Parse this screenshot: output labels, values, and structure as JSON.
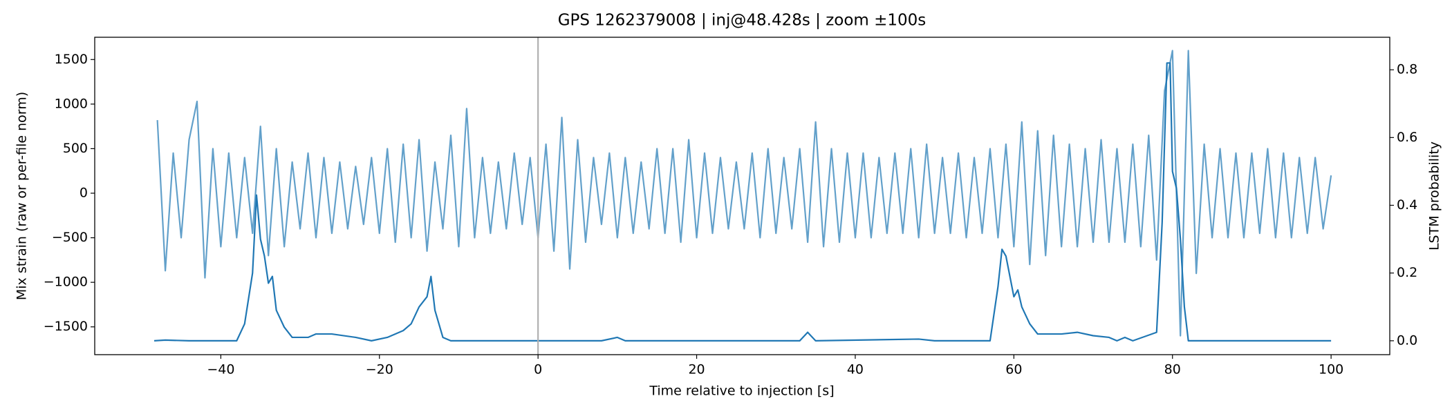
{
  "chart_data": {
    "type": "line",
    "title": "GPS 1262379008 | inj@48.428s | zoom ±100s",
    "x_label": "Time relative to injection [s]",
    "y_label": "Mix strain (raw or per-file norm)",
    "y2_label": "LSTM probability",
    "xlim": [
      -55.9,
      107.4
    ],
    "ylim": [
      -1812,
      1750
    ],
    "y2lim": [
      -0.041,
      0.896
    ],
    "xticks": [
      {
        "value": -40,
        "label": "−40"
      },
      {
        "value": -20,
        "label": "−20"
      },
      0,
      20,
      40,
      60,
      80,
      100
    ],
    "yticks": [
      {
        "value": -1500,
        "label": "−1500"
      },
      {
        "value": -1000,
        "label": "−1000"
      },
      {
        "value": -500,
        "label": "−500"
      },
      0,
      500,
      1000,
      1500
    ],
    "y2ticks": [
      {
        "value": 0,
        "label": "0.0"
      },
      0.2,
      0.4,
      0.6,
      0.8
    ],
    "vline": 0,
    "vline_color": "#b0b0b0",
    "series": [
      {
        "color": "#1f77b4",
        "opacity": 0.7,
        "axis": "y",
        "x": [
          -48,
          -47,
          -46,
          -45,
          -44,
          -43,
          -42,
          -41,
          -40,
          -39,
          -38,
          -37,
          -36,
          -35,
          -34,
          -33,
          -32,
          -31,
          -30,
          -29,
          -28,
          -27,
          -26,
          -25,
          -24,
          -23,
          -22,
          -21,
          -20,
          -19,
          -18,
          -17,
          -16,
          -15,
          -14,
          -13,
          -12,
          -11,
          -10,
          -9,
          -8,
          -7,
          -6,
          -5,
          -4,
          -3,
          -2,
          -1,
          0,
          1,
          2,
          3,
          4,
          5,
          6,
          7,
          8,
          9,
          10,
          11,
          12,
          13,
          14,
          15,
          16,
          17,
          18,
          19,
          20,
          21,
          22,
          23,
          24,
          25,
          26,
          27,
          28,
          29,
          30,
          31,
          32,
          33,
          34,
          35,
          36,
          37,
          38,
          39,
          40,
          41,
          42,
          43,
          44,
          45,
          46,
          47,
          48,
          49,
          50,
          51,
          52,
          53,
          54,
          55,
          56,
          57,
          58,
          59,
          60,
          61,
          62,
          63,
          64,
          65,
          66,
          67,
          68,
          69,
          70,
          71,
          72,
          73,
          74,
          75,
          76,
          77,
          78,
          79,
          80,
          81,
          82,
          83,
          84,
          85,
          86,
          87,
          88,
          89,
          90,
          91,
          92,
          93,
          94,
          95,
          96,
          97,
          98,
          99,
          100
        ],
        "values": [
          820,
          -870,
          450,
          -500,
          600,
          1030,
          -950,
          500,
          -600,
          450,
          -500,
          400,
          -450,
          750,
          -700,
          500,
          -600,
          350,
          -400,
          450,
          -500,
          400,
          -450,
          350,
          -400,
          300,
          -350,
          400,
          -450,
          500,
          -550,
          550,
          -500,
          600,
          -650,
          350,
          -400,
          650,
          -600,
          950,
          -500,
          400,
          -450,
          350,
          -400,
          450,
          -350,
          400,
          -500,
          550,
          -650,
          850,
          -850,
          600,
          -550,
          400,
          -350,
          450,
          -500,
          400,
          -450,
          350,
          -400,
          500,
          -450,
          500,
          -550,
          600,
          -500,
          450,
          -450,
          400,
          -400,
          350,
          -400,
          450,
          -500,
          500,
          -450,
          400,
          -400,
          500,
          -550,
          800,
          -600,
          500,
          -550,
          450,
          -500,
          450,
          -500,
          400,
          -450,
          450,
          -450,
          500,
          -500,
          550,
          -450,
          400,
          -450,
          450,
          -500,
          400,
          -450,
          500,
          -500,
          550,
          -600,
          800,
          -800,
          700,
          -700,
          650,
          -600,
          550,
          -600,
          500,
          -550,
          600,
          -550,
          500,
          -550,
          550,
          -600,
          650,
          -750,
          1150,
          1600,
          -1600,
          1600,
          -900,
          550,
          -500,
          500,
          -500,
          450,
          -500,
          450,
          -450,
          500,
          -500,
          450,
          -500,
          400,
          -450,
          400,
          -400,
          200
        ]
      },
      {
        "color": "#1f77b4",
        "opacity": 1,
        "axis": "y2",
        "x": [
          -48.4,
          -47,
          -44,
          -38,
          -37,
          -36,
          -35.5,
          -35,
          -34.5,
          -34,
          -33.5,
          -33,
          -32,
          -31,
          -29,
          -28,
          -26,
          -23,
          -21,
          -19,
          -17,
          -16,
          -15,
          -14,
          -13.5,
          -13,
          -12,
          -11,
          8,
          10,
          11,
          33,
          34,
          35,
          48,
          50,
          57,
          58,
          58.5,
          59,
          60,
          60.5,
          61,
          62,
          63,
          66,
          68,
          70,
          72,
          73,
          74,
          75,
          78,
          78.7,
          79.3,
          79.7,
          80,
          80.5,
          81,
          81.5,
          82,
          100
        ],
        "values": [
          0,
          0.002,
          0,
          0,
          0.05,
          0.2,
          0.43,
          0.3,
          0.25,
          0.17,
          0.19,
          0.09,
          0.04,
          0.01,
          0.01,
          0.02,
          0.02,
          0.01,
          0,
          0.01,
          0.03,
          0.05,
          0.1,
          0.13,
          0.19,
          0.09,
          0.01,
          0,
          0,
          0.01,
          0,
          0,
          0.025,
          0,
          0.005,
          0,
          0,
          0.16,
          0.27,
          0.25,
          0.13,
          0.15,
          0.1,
          0.05,
          0.02,
          0.02,
          0.025,
          0.015,
          0.01,
          0,
          0.01,
          0,
          0.025,
          0.35,
          0.82,
          0.82,
          0.5,
          0.45,
          0.3,
          0.1,
          0,
          0
        ]
      }
    ]
  }
}
